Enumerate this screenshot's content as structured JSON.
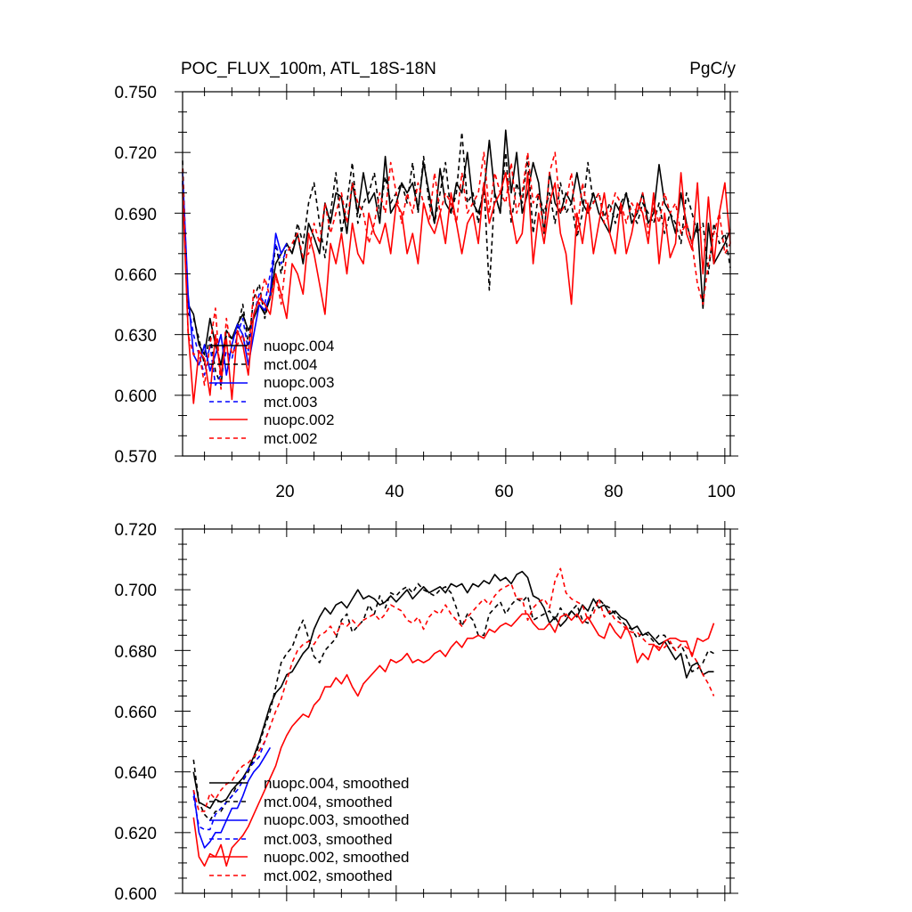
{
  "chart_data": [
    {
      "type": "line",
      "title": "POC_FLUX_100m, ATL_18S-18N",
      "units": "PgC/y",
      "xlim": [
        1,
        101
      ],
      "ylim": [
        0.57,
        0.75
      ],
      "xticks": [
        20,
        40,
        60,
        80,
        100
      ],
      "xticklabels": [
        "20",
        "40",
        "60",
        "80",
        "100"
      ],
      "yticks": [
        0.57,
        0.6,
        0.63,
        0.66,
        0.69,
        0.72,
        0.75
      ],
      "yticklabels": [
        "0.570",
        "0.600",
        "0.630",
        "0.660",
        "0.690",
        "0.720",
        "0.750"
      ],
      "legend_location": "lower-left",
      "series": [
        {
          "name": "nuopc.004",
          "color": "#000000",
          "dash": false,
          "x_start": 1,
          "values": [
            0.706,
            0.645,
            0.64,
            0.625,
            0.62,
            0.638,
            0.625,
            0.615,
            0.632,
            0.628,
            0.635,
            0.64,
            0.632,
            0.638,
            0.645,
            0.64,
            0.648,
            0.665,
            0.67,
            0.675,
            0.67,
            0.68,
            0.665,
            0.685,
            0.678,
            0.67,
            0.695,
            0.685,
            0.7,
            0.698,
            0.68,
            0.705,
            0.69,
            0.71,
            0.695,
            0.7,
            0.685,
            0.718,
            0.69,
            0.695,
            0.705,
            0.7,
            0.705,
            0.692,
            0.715,
            0.7,
            0.685,
            0.712,
            0.695,
            0.69,
            0.705,
            0.7,
            0.72,
            0.695,
            0.69,
            0.7,
            0.726,
            0.7,
            0.69,
            0.731,
            0.7,
            0.72,
            0.69,
            0.7,
            0.715,
            0.705,
            0.68,
            0.71,
            0.695,
            0.69,
            0.7,
            0.695,
            0.71,
            0.695,
            0.69,
            0.7,
            0.69,
            0.685,
            0.68,
            0.695,
            0.69,
            0.7,
            0.685,
            0.69,
            0.7,
            0.685,
            0.69,
            0.714,
            0.695,
            0.69,
            0.68,
            0.7,
            0.685,
            0.675,
            0.685,
            0.643,
            0.685,
            0.665,
            0.67,
            0.675,
            0.682
          ]
        },
        {
          "name": "mct.004",
          "color": "#000000",
          "dash": true,
          "x_start": 1,
          "values": [
            0.716,
            0.64,
            0.638,
            0.628,
            0.615,
            0.63,
            0.612,
            0.605,
            0.63,
            0.628,
            0.632,
            0.645,
            0.625,
            0.648,
            0.655,
            0.638,
            0.65,
            0.675,
            0.66,
            0.675,
            0.67,
            0.685,
            0.675,
            0.695,
            0.705,
            0.685,
            0.668,
            0.69,
            0.71,
            0.68,
            0.695,
            0.715,
            0.685,
            0.695,
            0.7,
            0.71,
            0.69,
            0.708,
            0.695,
            0.7,
            0.705,
            0.695,
            0.715,
            0.69,
            0.718,
            0.695,
            0.685,
            0.7,
            0.715,
            0.69,
            0.7,
            0.73,
            0.695,
            0.7,
            0.685,
            0.705,
            0.652,
            0.7,
            0.69,
            0.72,
            0.685,
            0.705,
            0.695,
            0.718,
            0.68,
            0.7,
            0.69,
            0.7,
            0.685,
            0.705,
            0.69,
            0.695,
            0.678,
            0.69,
            0.715,
            0.695,
            0.7,
            0.688,
            0.695,
            0.685,
            0.695,
            0.7,
            0.69,
            0.685,
            0.695,
            0.69,
            0.685,
            0.695,
            0.68,
            0.69,
            0.685,
            0.675,
            0.7,
            0.69,
            0.68,
            0.685,
            0.66,
            0.685,
            0.675,
            0.68,
            0.663
          ]
        },
        {
          "name": "nuopc.003",
          "color": "#0000ff",
          "dash": false,
          "x_start": 1,
          "values": [
            0.71,
            0.65,
            0.62,
            0.615,
            0.625,
            0.612,
            0.62,
            0.63,
            0.61,
            0.625,
            0.635,
            0.63,
            0.615,
            0.63,
            0.645,
            0.642,
            0.65,
            0.68,
            0.67,
            0.675
          ]
        },
        {
          "name": "mct.003",
          "color": "#0000ff",
          "dash": true,
          "x_start": 1,
          "values": [
            0.705,
            0.645,
            0.63,
            0.62,
            0.61,
            0.625,
            0.605,
            0.61,
            0.622,
            0.618,
            0.63,
            0.638,
            0.622,
            0.64,
            0.65,
            0.645,
            0.66,
            0.675,
            0.665,
            0.672
          ]
        },
        {
          "name": "nuopc.002",
          "color": "#ff0000",
          "dash": false,
          "x_start": 1,
          "values": [
            0.7,
            0.632,
            0.596,
            0.622,
            0.618,
            0.6,
            0.63,
            0.61,
            0.628,
            0.598,
            0.632,
            0.625,
            0.61,
            0.64,
            0.648,
            0.645,
            0.64,
            0.66,
            0.65,
            0.638,
            0.665,
            0.66,
            0.65,
            0.68,
            0.67,
            0.655,
            0.64,
            0.675,
            0.665,
            0.68,
            0.66,
            0.685,
            0.67,
            0.665,
            0.69,
            0.68,
            0.675,
            0.685,
            0.67,
            0.695,
            0.69,
            0.67,
            0.68,
            0.665,
            0.695,
            0.685,
            0.68,
            0.69,
            0.675,
            0.7,
            0.685,
            0.67,
            0.685,
            0.69,
            0.675,
            0.705,
            0.685,
            0.695,
            0.7,
            0.71,
            0.69,
            0.675,
            0.68,
            0.71,
            0.665,
            0.69,
            0.675,
            0.695,
            0.705,
            0.68,
            0.67,
            0.645,
            0.69,
            0.675,
            0.695,
            0.67,
            0.685,
            0.7,
            0.68,
            0.67,
            0.695,
            0.67,
            0.68,
            0.695,
            0.69,
            0.675,
            0.7,
            0.665,
            0.69,
            0.668,
            0.675,
            0.71,
            0.68,
            0.672,
            0.705,
            0.66,
            0.698,
            0.665,
            0.69,
            0.705,
            0.675
          ]
        },
        {
          "name": "mct.002",
          "color": "#ff0000",
          "dash": true,
          "x_start": 1,
          "values": [
            0.712,
            0.63,
            0.62,
            0.622,
            0.605,
            0.625,
            0.643,
            0.603,
            0.638,
            0.62,
            0.625,
            0.63,
            0.62,
            0.652,
            0.645,
            0.658,
            0.648,
            0.66,
            0.645,
            0.67,
            0.675,
            0.68,
            0.668,
            0.67,
            0.685,
            0.675,
            0.695,
            0.68,
            0.69,
            0.7,
            0.685,
            0.705,
            0.695,
            0.69,
            0.675,
            0.685,
            0.7,
            0.69,
            0.715,
            0.7,
            0.685,
            0.7,
            0.69,
            0.705,
            0.695,
            0.685,
            0.71,
            0.69,
            0.7,
            0.695,
            0.685,
            0.71,
            0.69,
            0.695,
            0.7,
            0.72,
            0.69,
            0.71,
            0.7,
            0.695,
            0.715,
            0.69,
            0.7,
            0.72,
            0.695,
            0.7,
            0.68,
            0.71,
            0.72,
            0.69,
            0.695,
            0.71,
            0.68,
            0.705,
            0.69,
            0.695,
            0.7,
            0.685,
            0.69,
            0.7,
            0.695,
            0.685,
            0.695,
            0.69,
            0.7,
            0.68,
            0.695,
            0.685,
            0.7,
            0.69,
            0.695,
            0.68,
            0.685,
            0.675,
            0.655,
            0.645,
            0.665,
            0.68,
            0.69,
            0.67,
            0.675
          ]
        }
      ]
    },
    {
      "type": "line",
      "title": "",
      "xlim": [
        1,
        101
      ],
      "ylim": [
        0.6,
        0.72
      ],
      "yticks": [
        0.6,
        0.62,
        0.64,
        0.66,
        0.68,
        0.7,
        0.72
      ],
      "yticklabels": [
        "0.600",
        "0.620",
        "0.640",
        "0.660",
        "0.680",
        "0.700",
        "0.720"
      ],
      "legend_location": "lower-left",
      "series": [
        {
          "name": "nuopc.004, smoothed",
          "color": "#000000",
          "dash": false,
          "x_start": 3,
          "values": [
            0.64,
            0.63,
            0.629,
            0.628,
            0.631,
            0.63,
            0.631,
            0.634,
            0.636,
            0.638,
            0.641,
            0.645,
            0.65,
            0.656,
            0.662,
            0.666,
            0.668,
            0.672,
            0.673,
            0.676,
            0.679,
            0.681,
            0.687,
            0.691,
            0.694,
            0.692,
            0.695,
            0.696,
            0.694,
            0.697,
            0.7,
            0.697,
            0.698,
            0.697,
            0.695,
            0.696,
            0.698,
            0.696,
            0.698,
            0.7,
            0.697,
            0.699,
            0.701,
            0.699,
            0.7,
            0.701,
            0.699,
            0.702,
            0.701,
            0.702,
            0.699,
            0.702,
            0.701,
            0.703,
            0.702,
            0.705,
            0.703,
            0.704,
            0.702,
            0.705,
            0.706,
            0.704,
            0.698,
            0.697,
            0.694,
            0.689,
            0.691,
            0.688,
            0.69,
            0.693,
            0.691,
            0.695,
            0.693,
            0.697,
            0.694,
            0.695,
            0.692,
            0.693,
            0.691,
            0.69,
            0.687,
            0.688,
            0.685,
            0.686,
            0.684,
            0.682,
            0.683,
            0.68,
            0.677,
            0.679,
            0.671,
            0.675,
            0.676,
            0.672,
            0.673,
            0.673
          ]
        },
        {
          "name": "mct.004, smoothed",
          "color": "#000000",
          "dash": true,
          "x_start": 3,
          "values": [
            0.644,
            0.63,
            0.626,
            0.624,
            0.627,
            0.627,
            0.63,
            0.632,
            0.636,
            0.637,
            0.64,
            0.644,
            0.649,
            0.655,
            0.66,
            0.668,
            0.676,
            0.679,
            0.681,
            0.686,
            0.69,
            0.684,
            0.678,
            0.676,
            0.68,
            0.682,
            0.684,
            0.69,
            0.692,
            0.686,
            0.688,
            0.69,
            0.695,
            0.692,
            0.698,
            0.694,
            0.699,
            0.698,
            0.7,
            0.701,
            0.699,
            0.702,
            0.7,
            0.699,
            0.698,
            0.7,
            0.701,
            0.699,
            0.694,
            0.688,
            0.692,
            0.69,
            0.685,
            0.685,
            0.692,
            0.694,
            0.696,
            0.692,
            0.695,
            0.697,
            0.696,
            0.698,
            0.69,
            0.691,
            0.692,
            0.693,
            0.69,
            0.694,
            0.691,
            0.693,
            0.695,
            0.69,
            0.689,
            0.694,
            0.697,
            0.695,
            0.694,
            0.692,
            0.69,
            0.688,
            0.687,
            0.684,
            0.686,
            0.685,
            0.683,
            0.685,
            0.685,
            0.682,
            0.68,
            0.682,
            0.678,
            0.673,
            0.674,
            0.676,
            0.68,
            0.679
          ]
        },
        {
          "name": "nuopc.003, smoothed",
          "color": "#0000ff",
          "dash": false,
          "x_start": 3,
          "values": [
            0.634,
            0.62,
            0.615,
            0.617,
            0.62,
            0.62,
            0.624,
            0.628,
            0.628,
            0.632,
            0.637,
            0.64,
            0.642,
            0.645,
            0.648
          ]
        },
        {
          "name": "mct.003, smoothed",
          "color": "#0000ff",
          "dash": true,
          "x_start": 3,
          "values": [
            0.632,
            0.622,
            0.621,
            0.621,
            0.626,
            0.628,
            0.63,
            0.632,
            0.634,
            0.637,
            0.641,
            0.643,
            0.645,
            0.65,
            0.655
          ]
        },
        {
          "name": "nuopc.002, smoothed",
          "color": "#ff0000",
          "dash": false,
          "x_start": 3,
          "values": [
            0.625,
            0.612,
            0.609,
            0.613,
            0.612,
            0.616,
            0.609,
            0.615,
            0.617,
            0.619,
            0.622,
            0.626,
            0.63,
            0.634,
            0.638,
            0.642,
            0.648,
            0.652,
            0.655,
            0.657,
            0.659,
            0.658,
            0.662,
            0.664,
            0.668,
            0.668,
            0.671,
            0.669,
            0.672,
            0.668,
            0.665,
            0.669,
            0.671,
            0.673,
            0.675,
            0.673,
            0.677,
            0.676,
            0.677,
            0.679,
            0.676,
            0.677,
            0.676,
            0.677,
            0.679,
            0.68,
            0.678,
            0.681,
            0.683,
            0.681,
            0.684,
            0.684,
            0.685,
            0.684,
            0.687,
            0.686,
            0.688,
            0.689,
            0.688,
            0.69,
            0.692,
            0.692,
            0.689,
            0.687,
            0.687,
            0.689,
            0.686,
            0.691,
            0.692,
            0.69,
            0.692,
            0.689,
            0.691,
            0.688,
            0.685,
            0.684,
            0.689,
            0.686,
            0.684,
            0.688,
            0.684,
            0.676,
            0.679,
            0.677,
            0.682,
            0.68,
            0.683,
            0.684,
            0.684,
            0.683,
            0.683,
            0.678,
            0.684,
            0.683,
            0.684,
            0.689
          ]
        },
        {
          "name": "mct.002, smoothed",
          "color": "#ff0000",
          "dash": true,
          "x_start": 3,
          "values": [
            0.634,
            0.627,
            0.627,
            0.633,
            0.631,
            0.634,
            0.636,
            0.637,
            0.64,
            0.642,
            0.643,
            0.645,
            0.647,
            0.65,
            0.655,
            0.66,
            0.664,
            0.67,
            0.676,
            0.68,
            0.682,
            0.683,
            0.682,
            0.685,
            0.686,
            0.688,
            0.685,
            0.689,
            0.688,
            0.69,
            0.688,
            0.69,
            0.691,
            0.692,
            0.69,
            0.692,
            0.695,
            0.694,
            0.693,
            0.69,
            0.689,
            0.691,
            0.687,
            0.691,
            0.693,
            0.692,
            0.695,
            0.692,
            0.69,
            0.688,
            0.691,
            0.693,
            0.695,
            0.697,
            0.695,
            0.698,
            0.7,
            0.701,
            0.702,
            0.697,
            0.697,
            0.69,
            0.694,
            0.696,
            0.697,
            0.694,
            0.703,
            0.707,
            0.699,
            0.697,
            0.696,
            0.695,
            0.69,
            0.692,
            0.697,
            0.691,
            0.693,
            0.69,
            0.689,
            0.687,
            0.686,
            0.686,
            0.684,
            0.682,
            0.682,
            0.681,
            0.681,
            0.683,
            0.68,
            0.682,
            0.681,
            0.679,
            0.676,
            0.672,
            0.669,
            0.665
          ]
        }
      ]
    }
  ]
}
